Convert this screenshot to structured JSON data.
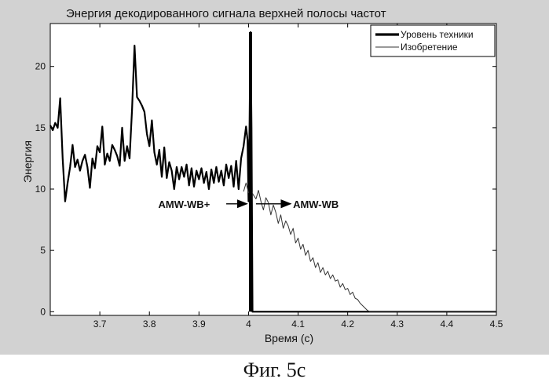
{
  "chart_data": {
    "type": "line",
    "title": "Энергия декодированного сигнала верхней полосы частот",
    "xlabel": "Время (с)",
    "ylabel": "Энергия",
    "xlim": [
      3.6,
      4.5
    ],
    "ylim": [
      -0.3,
      23.5
    ],
    "xticks": [
      3.7,
      3.8,
      3.9,
      4,
      4.1,
      4.2,
      4.3,
      4.4,
      4.5
    ],
    "yticks": [
      0,
      5,
      10,
      15,
      20
    ],
    "grid": false,
    "legend": "top-right",
    "series": [
      {
        "name": "Уровень техники",
        "color": "#000000",
        "points": [
          [
            3.6,
            15.2
          ],
          [
            3.605,
            14.8
          ],
          [
            3.61,
            15.4
          ],
          [
            3.615,
            15.0
          ],
          [
            3.62,
            17.4
          ],
          [
            3.625,
            12.5
          ],
          [
            3.63,
            9.0
          ],
          [
            3.635,
            10.5
          ],
          [
            3.64,
            11.8
          ],
          [
            3.645,
            13.6
          ],
          [
            3.65,
            11.8
          ],
          [
            3.655,
            12.4
          ],
          [
            3.66,
            11.5
          ],
          [
            3.665,
            12.3
          ],
          [
            3.67,
            12.8
          ],
          [
            3.675,
            11.8
          ],
          [
            3.68,
            10.1
          ],
          [
            3.685,
            12.5
          ],
          [
            3.69,
            11.7
          ],
          [
            3.695,
            13.5
          ],
          [
            3.7,
            13.0
          ],
          [
            3.705,
            15.1
          ],
          [
            3.71,
            12.0
          ],
          [
            3.715,
            12.9
          ],
          [
            3.72,
            12.3
          ],
          [
            3.725,
            13.6
          ],
          [
            3.73,
            13.2
          ],
          [
            3.735,
            12.7
          ],
          [
            3.74,
            11.9
          ],
          [
            3.745,
            15.0
          ],
          [
            3.75,
            12.3
          ],
          [
            3.755,
            13.5
          ],
          [
            3.76,
            12.5
          ],
          [
            3.765,
            16.5
          ],
          [
            3.77,
            21.7
          ],
          [
            3.775,
            17.5
          ],
          [
            3.78,
            17.2
          ],
          [
            3.785,
            16.8
          ],
          [
            3.79,
            16.3
          ],
          [
            3.795,
            14.5
          ],
          [
            3.8,
            13.5
          ],
          [
            3.805,
            15.6
          ],
          [
            3.81,
            13.0
          ],
          [
            3.815,
            12.0
          ],
          [
            3.82,
            13.2
          ],
          [
            3.825,
            11.0
          ],
          [
            3.83,
            13.4
          ],
          [
            3.835,
            10.9
          ],
          [
            3.84,
            12.2
          ],
          [
            3.845,
            11.5
          ],
          [
            3.85,
            10.0
          ],
          [
            3.855,
            11.8
          ],
          [
            3.86,
            10.8
          ],
          [
            3.865,
            11.8
          ],
          [
            3.87,
            11.0
          ],
          [
            3.875,
            12.0
          ],
          [
            3.88,
            10.3
          ],
          [
            3.885,
            11.7
          ],
          [
            3.89,
            10.2
          ],
          [
            3.895,
            11.5
          ],
          [
            3.9,
            10.8
          ],
          [
            3.905,
            11.7
          ],
          [
            3.91,
            10.5
          ],
          [
            3.915,
            11.4
          ],
          [
            3.92,
            10.0
          ],
          [
            3.925,
            11.6
          ],
          [
            3.93,
            10.5
          ],
          [
            3.935,
            11.8
          ],
          [
            3.94,
            10.6
          ],
          [
            3.945,
            11.5
          ],
          [
            3.95,
            10.3
          ],
          [
            3.955,
            12.0
          ],
          [
            3.96,
            10.9
          ],
          [
            3.965,
            11.9
          ],
          [
            3.97,
            10.2
          ],
          [
            3.975,
            12.3
          ],
          [
            3.98,
            10.0
          ],
          [
            3.985,
            12.5
          ],
          [
            3.99,
            13.5
          ],
          [
            3.995,
            15.1
          ],
          [
            3.998,
            14.0
          ],
          [
            4.0,
            9.0
          ],
          [
            4.002,
            15.0
          ],
          [
            4.004,
            22.8
          ],
          [
            4.006,
            15.0
          ],
          [
            4.008,
            0.0
          ],
          [
            4.02,
            0.0
          ],
          [
            4.5,
            0.0
          ]
        ]
      },
      {
        "name": "Изобретение",
        "color": "#333333",
        "points": [
          [
            3.99,
            9.8
          ],
          [
            3.995,
            10.5
          ],
          [
            4.0,
            9.7
          ],
          [
            4.005,
            9.9
          ],
          [
            4.01,
            9.5
          ],
          [
            4.015,
            9.2
          ],
          [
            4.02,
            9.9
          ],
          [
            4.025,
            9.0
          ],
          [
            4.03,
            8.3
          ],
          [
            4.035,
            9.3
          ],
          [
            4.04,
            8.9
          ],
          [
            4.045,
            7.9
          ],
          [
            4.05,
            8.7
          ],
          [
            4.055,
            8.1
          ],
          [
            4.06,
            7.2
          ],
          [
            4.065,
            7.9
          ],
          [
            4.07,
            6.8
          ],
          [
            4.075,
            7.4
          ],
          [
            4.08,
            7.0
          ],
          [
            4.085,
            6.3
          ],
          [
            4.09,
            6.8
          ],
          [
            4.095,
            5.6
          ],
          [
            4.1,
            6.0
          ],
          [
            4.105,
            5.1
          ],
          [
            4.11,
            5.5
          ],
          [
            4.115,
            4.6
          ],
          [
            4.12,
            5.0
          ],
          [
            4.125,
            4.1
          ],
          [
            4.13,
            4.4
          ],
          [
            4.135,
            3.6
          ],
          [
            4.14,
            4.0
          ],
          [
            4.145,
            3.2
          ],
          [
            4.15,
            3.6
          ],
          [
            4.155,
            3.0
          ],
          [
            4.16,
            3.3
          ],
          [
            4.165,
            2.7
          ],
          [
            4.17,
            3.0
          ],
          [
            4.175,
            2.5
          ],
          [
            4.18,
            2.6
          ],
          [
            4.185,
            2.0
          ],
          [
            4.19,
            2.3
          ],
          [
            4.195,
            1.8
          ],
          [
            4.2,
            1.9
          ],
          [
            4.205,
            1.4
          ],
          [
            4.21,
            1.6
          ],
          [
            4.215,
            1.1
          ],
          [
            4.22,
            1.0
          ],
          [
            4.225,
            0.7
          ],
          [
            4.23,
            0.5
          ],
          [
            4.235,
            0.3
          ],
          [
            4.24,
            0.1
          ],
          [
            4.245,
            0.0
          ],
          [
            4.5,
            0.0
          ]
        ]
      }
    ],
    "annotations": [
      {
        "text": "AMW-WB+",
        "x": 3.87,
        "y": 8.8,
        "arrow_to": [
          4.0,
          8.8
        ]
      },
      {
        "text": "AMW-WB",
        "x": 4.12,
        "y": 8.8,
        "arrow_from": [
          4.015,
          8.8
        ]
      }
    ]
  },
  "caption": "Фиг. 5с"
}
